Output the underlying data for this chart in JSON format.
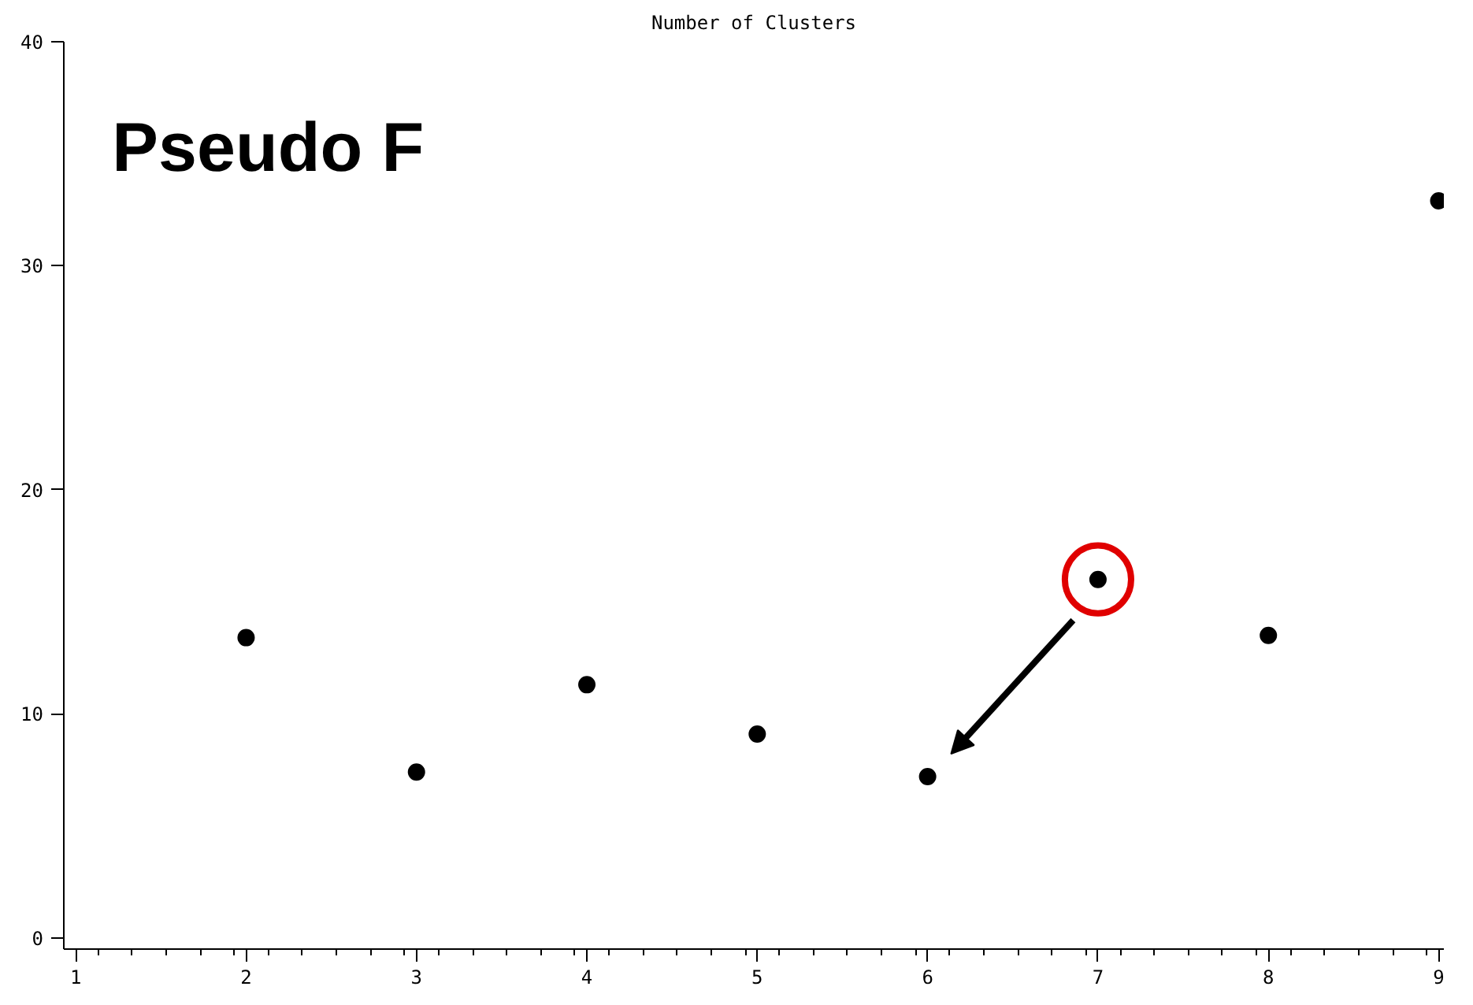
{
  "chart_data": {
    "type": "scatter",
    "xlabel": "Number of Clusters",
    "annotations": [
      "Pseudo F"
    ],
    "x": [
      2,
      3,
      4,
      5,
      6,
      7,
      8,
      9
    ],
    "values": [
      13.4,
      7.4,
      11.3,
      9.1,
      7.2,
      16.0,
      13.5,
      32.9
    ],
    "color": "#000000",
    "marker": "circle",
    "xlim": [
      0.93,
      9.03
    ],
    "ylim": [
      -0.5,
      40
    ],
    "xticks": [
      1,
      2,
      3,
      4,
      5,
      6,
      7,
      8,
      9
    ],
    "yticks": [
      0,
      10,
      20,
      30,
      40
    ],
    "grid": false
  }
}
